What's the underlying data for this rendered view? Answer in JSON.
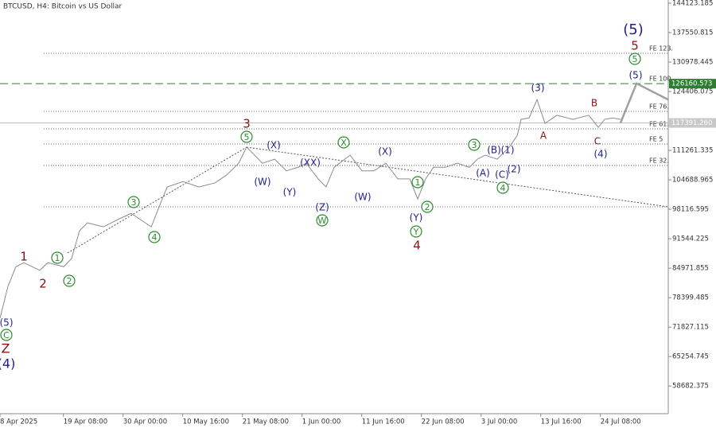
{
  "chart_data": {
    "type": "line",
    "title": "BTCUSD, H4:  Bitcoin vs US Dollar",
    "x": [
      0,
      34,
      68,
      102,
      171,
      205,
      273,
      307,
      341,
      375,
      444,
      512,
      563,
      597,
      649,
      683,
      717,
      785,
      853,
      922,
      973,
      1024,
      1058,
      1092,
      1126,
      1178,
      1229,
      1280,
      1314,
      1365,
      1399,
      1434,
      1502,
      1553,
      1604,
      1655,
      1707,
      1758,
      1792,
      1826,
      1860,
      1911,
      1963,
      2014,
      2048,
      2082,
      2133,
      2185,
      2219,
      2236,
      2270,
      2304,
      2338,
      2389,
      2458,
      2526,
      2567,
      2594,
      2628,
      2662
    ],
    "values": [
      73800,
      80900,
      85300,
      86200,
      84500,
      86200,
      85300,
      87100,
      93300,
      95100,
      94200,
      96000,
      97200,
      96000,
      94200,
      98700,
      103100,
      104300,
      103100,
      104000,
      105800,
      108400,
      112000,
      110200,
      108400,
      109300,
      106700,
      107500,
      108400,
      104900,
      103100,
      107500,
      110200,
      106700,
      106700,
      108400,
      104900,
      104900,
      100400,
      104900,
      107500,
      107500,
      108400,
      107500,
      109300,
      110200,
      109300,
      112000,
      114600,
      118200,
      118500,
      122600,
      117300,
      119100,
      118200,
      119100,
      116400,
      118200,
      118500,
      118200
    ],
    "color": "#8c8c8c",
    "projection": {
      "x": [
        2662,
        2731,
        2867
      ],
      "values": [
        117400,
        126200,
        122600
      ],
      "color": "#a0a0a0"
    },
    "xlim": [
      0,
      2867
    ],
    "xticks": [
      {
        "value": 0,
        "label": "8 Apr 2025"
      },
      {
        "value": 272,
        "label": "19 Apr 08:00"
      },
      {
        "value": 528,
        "label": "30 Apr 00:00"
      },
      {
        "value": 784,
        "label": "10 May 16:00"
      },
      {
        "value": 1040,
        "label": "21 May 08:00"
      },
      {
        "value": 1296,
        "label": "1 Jun 00:00"
      },
      {
        "value": 1552,
        "label": "11 Jun 16:00"
      },
      {
        "value": 1808,
        "label": "22 Jun 08:00"
      },
      {
        "value": 2064,
        "label": "3 Jul 00:00"
      },
      {
        "value": 2320,
        "label": "13 Jul 16:00"
      },
      {
        "value": 2576,
        "label": "24 Jul 08:00"
      }
    ],
    "ylim": [
      52500,
      144830
    ],
    "yticks": [
      144123.185,
      137550.815,
      130978.445,
      124406.075,
      111261.335,
      104688.965,
      98116.595,
      91544.225,
      84971.855,
      78399.485,
      71827.115,
      65254.745,
      58682.375
    ],
    "current_price": {
      "value": 117391.26,
      "label": "117391.260"
    },
    "target_level": 126160.573,
    "fib_levels": [
      {
        "value": 132930,
        "label": "FE 123."
      },
      {
        "value": 126160.573,
        "label": "FE 100."
      },
      {
        "value": 119970,
        "label": "FE 76."
      },
      {
        "value": 116060,
        "label": "FE 61."
      },
      {
        "value": 112690,
        "label": "FE 5"
      },
      {
        "value": 107900,
        "label": "FE 32."
      }
    ],
    "support_level": 98660,
    "annotations": [
      "(4)",
      "Z",
      "C",
      "(5)",
      "1",
      "2",
      "1",
      "2",
      "3",
      "4",
      "3",
      "5",
      "(X)",
      "(W)",
      "(XX)",
      "(Y)",
      "(Z)",
      "W",
      "X",
      "(X)",
      "(W)",
      "1",
      "2",
      "(Y)",
      "Y",
      "4",
      "3",
      "(B)",
      "(1)",
      "(A)",
      "(C)",
      "(2)",
      "4",
      "(3)",
      "A",
      "B",
      "C",
      "(4)",
      "(5)",
      "5",
      "5",
      "(5)"
    ]
  }
}
